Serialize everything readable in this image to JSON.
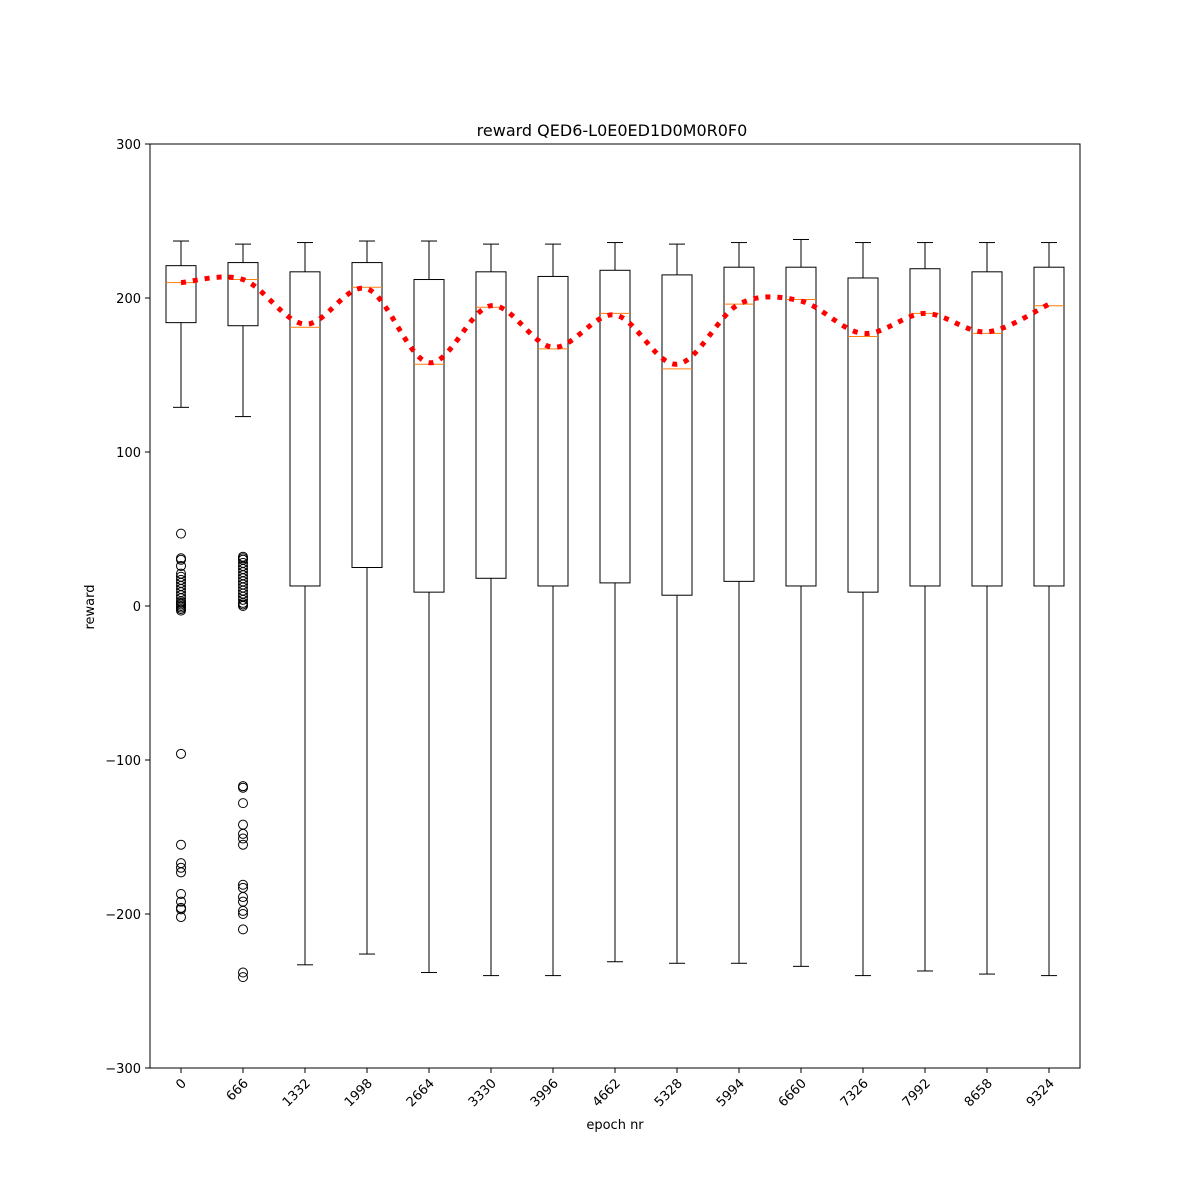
{
  "chart_data": {
    "type": "box",
    "title": "reward QED6-L0E0ED1D0M0R0F0",
    "xlabel": "epoch nr",
    "ylabel": "reward",
    "ylim": [
      -300,
      300
    ],
    "yticks": [
      -300,
      -200,
      -100,
      0,
      100,
      200,
      300
    ],
    "ytick_labels": [
      "−300",
      "−200",
      "−100",
      "0",
      "100",
      "200",
      "300"
    ],
    "categories": [
      "0",
      "666",
      "1332",
      "1998",
      "2664",
      "3330",
      "3996",
      "4662",
      "5328",
      "5994",
      "6660",
      "7326",
      "7992",
      "8658",
      "9324"
    ],
    "boxes": [
      {
        "whislo": 129,
        "q1": 184,
        "med": 210,
        "q3": 221,
        "whishi": 237,
        "mean": 210,
        "fliers": [
          47,
          31,
          30,
          26,
          21,
          19,
          17,
          15,
          13,
          11,
          9,
          7,
          5,
          3,
          2,
          1,
          0,
          -1,
          -2,
          -3,
          -96,
          -155,
          -167,
          -170,
          -173,
          -187,
          -192,
          -196,
          -197,
          -202
        ]
      },
      {
        "whislo": 123,
        "q1": 182,
        "med": 212,
        "q3": 223,
        "whishi": 235,
        "mean": 212,
        "fliers": [
          32,
          31,
          30,
          28,
          26,
          24,
          22,
          20,
          18,
          16,
          14,
          12,
          10,
          8,
          6,
          4,
          2,
          1,
          0,
          -117,
          -118,
          -128,
          -142,
          -148,
          -151,
          -155,
          -181,
          -183,
          -189,
          -192,
          -198,
          -200,
          -210,
          -238,
          -241
        ]
      },
      {
        "whislo": -233,
        "q1": 13,
        "med": 181,
        "q3": 217,
        "whishi": 236,
        "mean": 183,
        "fliers": []
      },
      {
        "whislo": -226,
        "q1": 25,
        "med": 207,
        "q3": 223,
        "whishi": 237,
        "mean": 206,
        "fliers": []
      },
      {
        "whislo": -238,
        "q1": 9,
        "med": 157,
        "q3": 212,
        "whishi": 237,
        "mean": 158,
        "fliers": []
      },
      {
        "whislo": -240,
        "q1": 18,
        "med": 194,
        "q3": 217,
        "whishi": 235,
        "mean": 195,
        "fliers": []
      },
      {
        "whislo": -240,
        "q1": 13,
        "med": 167,
        "q3": 214,
        "whishi": 235,
        "mean": 168,
        "fliers": []
      },
      {
        "whislo": -231,
        "q1": 15,
        "med": 190,
        "q3": 218,
        "whishi": 236,
        "mean": 189,
        "fliers": []
      },
      {
        "whislo": -232,
        "q1": 7,
        "med": 154,
        "q3": 215,
        "whishi": 235,
        "mean": 157,
        "fliers": []
      },
      {
        "whislo": -232,
        "q1": 16,
        "med": 196,
        "q3": 220,
        "whishi": 236,
        "mean": 196,
        "fliers": []
      },
      {
        "whislo": -234,
        "q1": 13,
        "med": 199,
        "q3": 220,
        "whishi": 238,
        "mean": 198,
        "fliers": []
      },
      {
        "whislo": -240,
        "q1": 9,
        "med": 175,
        "q3": 213,
        "whishi": 236,
        "mean": 177,
        "fliers": []
      },
      {
        "whislo": -237,
        "q1": 13,
        "med": 190,
        "q3": 219,
        "whishi": 236,
        "mean": 190,
        "fliers": []
      },
      {
        "whislo": -239,
        "q1": 13,
        "med": 177,
        "q3": 217,
        "whishi": 236,
        "mean": 178,
        "fliers": []
      },
      {
        "whislo": -240,
        "q1": 13,
        "med": 195,
        "q3": 220,
        "whishi": 236,
        "mean": 196,
        "fliers": []
      }
    ],
    "mean_line": {
      "color": "#ff0000",
      "style": "dotted"
    },
    "median_color": "#ff7f0e",
    "box_color": "#000000",
    "grid": false,
    "legend": "none"
  }
}
